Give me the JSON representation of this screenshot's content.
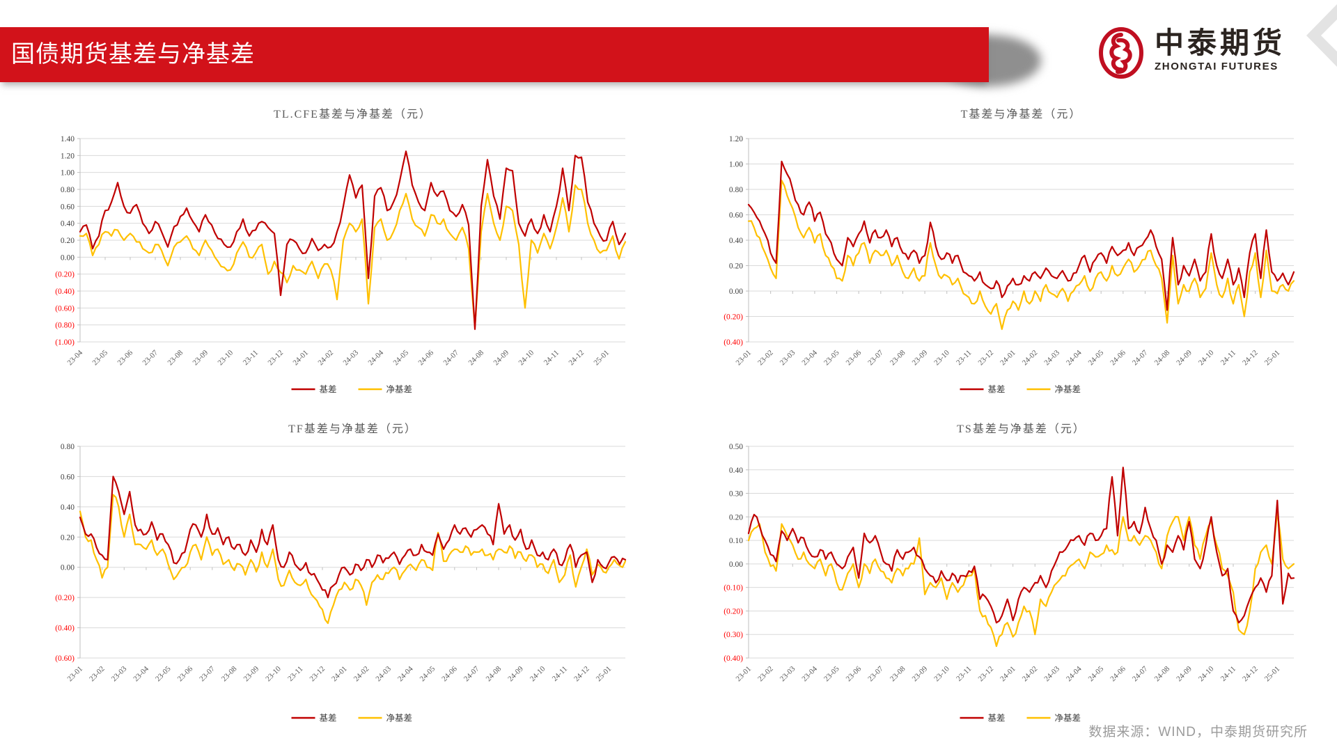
{
  "header": {
    "title": "国债期货基差与净基差",
    "banner_color": "#d2121a",
    "logo": {
      "cn": "中泰期货",
      "en": "ZHONGTAI FUTURES",
      "emblem_color": "#c00f21"
    }
  },
  "footer": {
    "source": "数据来源：WIND，中泰期货研究所"
  },
  "colors": {
    "basis_line": "#c00000",
    "net_basis_line": "#ffc000",
    "gridline": "#d9d9d9",
    "axis": "#bfbfbf",
    "tick_label": "#404040",
    "negative_tick_label": "#ff0000",
    "chart_title": "#595959"
  },
  "chart_data": [
    {
      "type": "line",
      "title": "TL.CFE基差与净基差（元）",
      "ylim": [
        -1.0,
        1.4
      ],
      "ytick_step": 0.2,
      "grid": true,
      "legend_position": "bottom",
      "negative_label_style": "red-parentheses",
      "points_per_month": 4,
      "x_labels": [
        "23-04",
        "23-05",
        "23-06",
        "23-07",
        "23-08",
        "23-09",
        "23-10",
        "23-11",
        "23-12",
        "24-01",
        "24-02",
        "24-03",
        "24-04",
        "24-05",
        "24-06",
        "24-07",
        "24-08",
        "24-09",
        "24-10",
        "24-11",
        "24-12",
        "25-01"
      ],
      "series": [
        {
          "name": "基差",
          "color": "#c00000",
          "values": [
            0.3,
            0.38,
            0.1,
            0.25,
            0.55,
            0.65,
            0.88,
            0.6,
            0.52,
            0.62,
            0.4,
            0.28,
            0.42,
            0.3,
            0.12,
            0.36,
            0.48,
            0.58,
            0.42,
            0.3,
            0.5,
            0.38,
            0.22,
            0.15,
            0.12,
            0.3,
            0.45,
            0.25,
            0.32,
            0.42,
            0.35,
            0.28,
            -0.45,
            0.15,
            0.2,
            0.1,
            0.05,
            0.22,
            0.08,
            0.15,
            0.12,
            0.3,
            0.6,
            0.97,
            0.7,
            0.85,
            -0.25,
            0.72,
            0.82,
            0.55,
            0.65,
            0.9,
            1.25,
            0.85,
            0.65,
            0.55,
            0.88,
            0.72,
            0.78,
            0.55,
            0.48,
            0.62,
            0.38,
            -0.85,
            0.6,
            1.15,
            0.72,
            0.45,
            1.05,
            1.02,
            0.4,
            0.25,
            0.45,
            0.28,
            0.5,
            0.3,
            0.6,
            1.05,
            0.55,
            1.2,
            1.18,
            0.65,
            0.4,
            0.25,
            0.2,
            0.42,
            0.15,
            0.28
          ]
        },
        {
          "name": "净基差",
          "color": "#ffc000",
          "values": [
            0.25,
            0.28,
            0.02,
            0.15,
            0.3,
            0.25,
            0.32,
            0.2,
            0.28,
            0.18,
            0.1,
            0.05,
            0.15,
            0.08,
            -0.1,
            0.12,
            0.18,
            0.25,
            0.1,
            0.02,
            0.2,
            0.08,
            -0.05,
            -0.12,
            -0.15,
            0.05,
            0.18,
            0.0,
            0.05,
            0.15,
            -0.2,
            -0.05,
            -0.18,
            -0.3,
            -0.1,
            -0.15,
            -0.2,
            -0.05,
            -0.25,
            -0.08,
            -0.15,
            -0.5,
            0.2,
            0.4,
            0.3,
            0.45,
            -0.55,
            0.35,
            0.45,
            0.2,
            0.3,
            0.55,
            0.75,
            0.45,
            0.35,
            0.25,
            0.5,
            0.4,
            0.45,
            0.28,
            0.2,
            0.35,
            0.1,
            -0.82,
            0.3,
            0.75,
            0.4,
            0.2,
            0.6,
            0.55,
            0.15,
            -0.6,
            0.2,
            0.05,
            0.28,
            0.1,
            0.35,
            0.7,
            0.3,
            0.85,
            0.8,
            0.4,
            0.2,
            0.05,
            0.08,
            0.25,
            -0.02,
            0.18
          ]
        }
      ]
    },
    {
      "type": "line",
      "title": "T基差与净基差（元）",
      "ylim": [
        -0.4,
        1.2
      ],
      "ytick_step": 0.2,
      "grid": true,
      "legend_position": "bottom",
      "negative_label_style": "red-parentheses",
      "points_per_month": 4,
      "x_labels": [
        "23-01",
        "23-02",
        "23-03",
        "23-04",
        "23-05",
        "23-06",
        "23-07",
        "23-08",
        "23-09",
        "23-10",
        "23-11",
        "23-12",
        "24-01",
        "24-02",
        "24-03",
        "24-04",
        "24-05",
        "24-06",
        "24-07",
        "24-08",
        "24-09",
        "24-10",
        "24-11",
        "24-12",
        "25-01"
      ],
      "series": [
        {
          "name": "基差",
          "color": "#c00000",
          "values": [
            0.68,
            0.62,
            0.55,
            0.45,
            0.3,
            0.22,
            1.02,
            0.92,
            0.8,
            0.68,
            0.6,
            0.7,
            0.55,
            0.62,
            0.45,
            0.38,
            0.25,
            0.2,
            0.42,
            0.35,
            0.45,
            0.55,
            0.38,
            0.48,
            0.42,
            0.48,
            0.35,
            0.42,
            0.3,
            0.25,
            0.32,
            0.22,
            0.28,
            0.54,
            0.35,
            0.25,
            0.3,
            0.22,
            0.28,
            0.15,
            0.12,
            0.08,
            0.15,
            0.05,
            0.02,
            0.08,
            -0.05,
            0.04,
            0.1,
            0.05,
            0.12,
            0.08,
            0.15,
            0.1,
            0.18,
            0.12,
            0.1,
            0.16,
            0.08,
            0.14,
            0.2,
            0.28,
            0.15,
            0.25,
            0.3,
            0.22,
            0.35,
            0.28,
            0.32,
            0.38,
            0.28,
            0.35,
            0.4,
            0.48,
            0.35,
            0.25,
            -0.15,
            0.42,
            0.05,
            0.2,
            0.12,
            0.25,
            0.08,
            0.15,
            0.45,
            0.2,
            0.1,
            0.25,
            0.05,
            0.18,
            -0.05,
            0.3,
            0.45,
            0.1,
            0.48,
            0.15,
            0.08,
            0.14,
            0.05,
            0.15
          ]
        },
        {
          "name": "净基差",
          "color": "#ffc000",
          "values": [
            0.55,
            0.5,
            0.42,
            0.3,
            0.18,
            0.1,
            0.87,
            0.75,
            0.65,
            0.5,
            0.42,
            0.5,
            0.38,
            0.45,
            0.28,
            0.2,
            0.1,
            0.08,
            0.28,
            0.2,
            0.3,
            0.38,
            0.22,
            0.32,
            0.28,
            0.32,
            0.2,
            0.28,
            0.15,
            0.1,
            0.18,
            0.08,
            0.12,
            0.38,
            0.2,
            0.1,
            0.12,
            0.05,
            0.1,
            -0.02,
            -0.05,
            -0.1,
            0.0,
            -0.12,
            -0.18,
            -0.1,
            -0.3,
            -0.15,
            -0.08,
            -0.15,
            0.0,
            -0.1,
            0.0,
            -0.08,
            0.05,
            -0.02,
            -0.05,
            0.02,
            -0.08,
            0.0,
            0.05,
            0.12,
            0.0,
            0.1,
            0.15,
            0.08,
            0.2,
            0.12,
            0.18,
            0.25,
            0.15,
            0.2,
            0.25,
            0.32,
            0.2,
            0.1,
            -0.25,
            0.28,
            -0.1,
            0.05,
            0.0,
            0.1,
            -0.05,
            0.02,
            0.3,
            0.05,
            -0.05,
            0.1,
            -0.1,
            0.05,
            -0.2,
            0.15,
            0.3,
            -0.05,
            0.32,
            0.0,
            -0.02,
            0.05,
            0.0,
            0.08
          ]
        }
      ]
    },
    {
      "type": "line",
      "title": "TF基差与净基差（元）",
      "ylim": [
        -0.6,
        0.8
      ],
      "ytick_step": 0.2,
      "grid": true,
      "legend_position": "bottom",
      "negative_label_style": "red-parentheses",
      "points_per_month": 4,
      "x_labels": [
        "23-01",
        "23-02",
        "23-03",
        "23-04",
        "23-05",
        "23-06",
        "23-07",
        "23-08",
        "23-09",
        "23-10",
        "23-11",
        "23-12",
        "24-01",
        "24-02",
        "24-03",
        "24-04",
        "24-05",
        "24-06",
        "24-07",
        "24-08",
        "24-09",
        "24-10",
        "24-11",
        "24-12",
        "25-01"
      ],
      "series": [
        {
          "name": "基差",
          "color": "#c00000",
          "values": [
            0.33,
            0.22,
            0.22,
            0.13,
            0.08,
            0.05,
            0.6,
            0.5,
            0.35,
            0.5,
            0.28,
            0.25,
            0.22,
            0.3,
            0.18,
            0.22,
            0.15,
            0.03,
            0.05,
            0.1,
            0.25,
            0.28,
            0.2,
            0.35,
            0.22,
            0.26,
            0.15,
            0.2,
            0.12,
            0.15,
            0.08,
            0.18,
            0.1,
            0.25,
            0.15,
            0.28,
            0.05,
            0.0,
            0.1,
            0.02,
            -0.02,
            0.03,
            -0.05,
            -0.08,
            -0.15,
            -0.2,
            -0.12,
            -0.05,
            0.0,
            -0.05,
            0.02,
            -0.02,
            0.05,
            0.0,
            0.08,
            0.03,
            0.06,
            0.1,
            0.02,
            0.08,
            0.12,
            0.08,
            0.15,
            0.1,
            0.08,
            0.22,
            0.12,
            0.18,
            0.28,
            0.22,
            0.26,
            0.2,
            0.25,
            0.28,
            0.22,
            0.15,
            0.42,
            0.22,
            0.28,
            0.18,
            0.25,
            0.12,
            0.18,
            0.08,
            0.1,
            0.05,
            0.12,
            0.02,
            0.05,
            0.15,
            0.0,
            0.08,
            0.1,
            -0.1,
            0.05,
            0.0,
            0.03,
            0.07,
            0.02,
            0.05
          ]
        },
        {
          "name": "净基差",
          "color": "#ffc000",
          "values": [
            0.37,
            0.2,
            0.18,
            0.05,
            -0.07,
            0.0,
            0.48,
            0.4,
            0.2,
            0.35,
            0.15,
            0.15,
            0.12,
            0.18,
            0.08,
            0.12,
            0.02,
            -0.08,
            -0.03,
            0.0,
            0.1,
            0.15,
            0.05,
            0.2,
            0.08,
            0.12,
            0.02,
            0.05,
            -0.02,
            0.02,
            -0.05,
            0.05,
            -0.03,
            0.1,
            0.0,
            0.12,
            -0.08,
            -0.12,
            -0.02,
            -0.1,
            -0.12,
            -0.08,
            -0.18,
            -0.22,
            -0.28,
            -0.37,
            -0.25,
            -0.15,
            -0.1,
            -0.15,
            -0.08,
            -0.12,
            -0.25,
            -0.1,
            -0.05,
            -0.08,
            -0.04,
            0.0,
            -0.08,
            -0.02,
            0.02,
            -0.02,
            0.05,
            0.0,
            -0.02,
            0.23,
            0.04,
            0.08,
            0.12,
            0.1,
            0.14,
            0.08,
            0.1,
            0.12,
            0.08,
            0.05,
            0.12,
            0.1,
            0.14,
            0.06,
            0.1,
            0.04,
            0.08,
            0.0,
            0.02,
            -0.04,
            0.05,
            -0.1,
            -0.05,
            0.08,
            -0.13,
            0.0,
            0.12,
            -0.05,
            0.02,
            -0.03,
            0.0,
            0.05,
            0.01,
            0.04
          ]
        }
      ]
    },
    {
      "type": "line",
      "title": "TS基差与净基差（元）",
      "ylim": [
        -0.4,
        0.5
      ],
      "ytick_step": 0.1,
      "grid": true,
      "legend_position": "bottom",
      "negative_label_style": "red-parentheses",
      "points_per_month": 4,
      "x_labels": [
        "23-01",
        "23-02",
        "23-03",
        "23-04",
        "23-05",
        "23-06",
        "23-07",
        "23-08",
        "23-09",
        "23-10",
        "23-11",
        "23-12",
        "24-01",
        "24-02",
        "24-03",
        "24-04",
        "24-05",
        "24-06",
        "24-07",
        "24-08",
        "24-09",
        "24-10",
        "24-11",
        "24-12",
        "25-01"
      ],
      "series": [
        {
          "name": "基差",
          "color": "#c00000",
          "values": [
            0.13,
            0.21,
            0.16,
            0.1,
            0.04,
            0.01,
            0.14,
            0.1,
            0.15,
            0.09,
            0.11,
            0.05,
            0.03,
            0.06,
            0.02,
            0.05,
            0.0,
            -0.02,
            0.03,
            0.07,
            -0.06,
            0.13,
            0.09,
            0.12,
            0.05,
            0.0,
            -0.03,
            0.06,
            0.02,
            0.05,
            0.07,
            0.03,
            -0.02,
            -0.05,
            -0.08,
            -0.03,
            -0.07,
            -0.04,
            -0.08,
            -0.05,
            -0.03,
            -0.01,
            -0.15,
            -0.14,
            -0.18,
            -0.25,
            -0.22,
            -0.15,
            -0.24,
            -0.15,
            -0.1,
            -0.12,
            -0.08,
            -0.05,
            -0.1,
            -0.03,
            0.02,
            0.05,
            0.08,
            0.1,
            0.12,
            0.08,
            0.13,
            0.1,
            0.12,
            0.15,
            0.37,
            0.12,
            0.41,
            0.15,
            0.18,
            0.13,
            0.24,
            0.15,
            0.1,
            0.0,
            0.08,
            0.05,
            0.12,
            0.06,
            0.18,
            0.02,
            -0.02,
            0.08,
            0.2,
            0.05,
            -0.05,
            -0.02,
            -0.2,
            -0.25,
            -0.22,
            -0.15,
            -0.1,
            -0.06,
            -0.12,
            -0.05,
            0.27,
            -0.17,
            -0.04,
            -0.06
          ]
        },
        {
          "name": "净基差",
          "color": "#ffc000",
          "values": [
            0.1,
            0.15,
            0.17,
            0.05,
            -0.01,
            -0.03,
            0.17,
            0.12,
            0.08,
            0.02,
            0.05,
            0.0,
            -0.02,
            0.02,
            -0.05,
            0.0,
            -0.08,
            -0.11,
            -0.04,
            0.0,
            -0.1,
            0.0,
            -0.04,
            0.02,
            -0.03,
            -0.06,
            -0.08,
            -0.02,
            -0.05,
            -0.02,
            0.0,
            0.11,
            -0.13,
            -0.08,
            -0.1,
            -0.06,
            -0.15,
            -0.08,
            -0.12,
            -0.09,
            -0.05,
            -0.02,
            -0.2,
            -0.22,
            -0.27,
            -0.35,
            -0.3,
            -0.25,
            -0.31,
            -0.25,
            -0.18,
            -0.2,
            -0.3,
            -0.15,
            -0.18,
            -0.12,
            -0.08,
            -0.05,
            -0.02,
            0.0,
            0.02,
            -0.02,
            0.05,
            0.03,
            0.04,
            0.08,
            0.06,
            0.05,
            0.2,
            0.1,
            0.12,
            0.08,
            0.12,
            0.1,
            0.05,
            -0.02,
            0.12,
            0.18,
            0.2,
            0.1,
            0.2,
            0.08,
            0.02,
            0.12,
            0.18,
            0.08,
            -0.02,
            -0.05,
            -0.12,
            -0.28,
            -0.3,
            -0.2,
            -0.02,
            0.05,
            0.08,
            0.0,
            0.22,
            0.02,
            -0.02,
            0.0
          ]
        }
      ]
    }
  ]
}
